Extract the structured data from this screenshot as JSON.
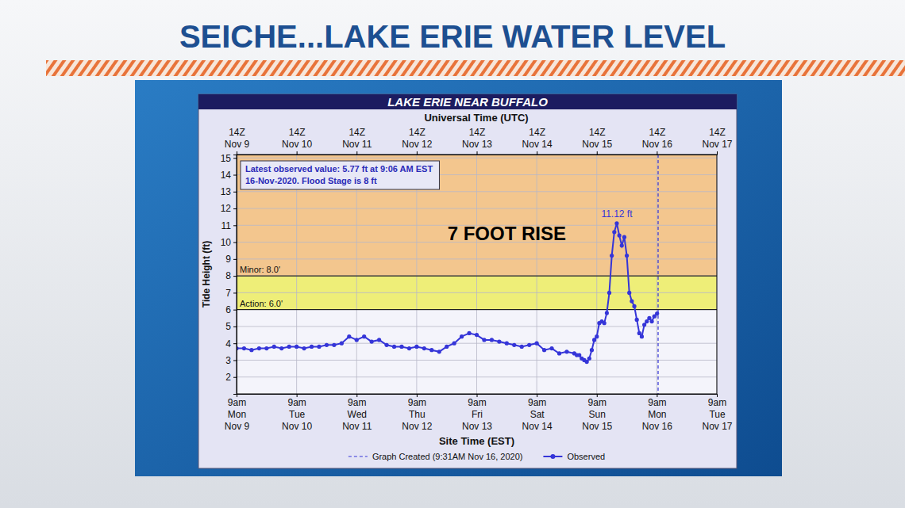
{
  "chart_data": {
    "type": "line",
    "headline": "SEICHE...LAKE ERIE WATER LEVEL",
    "title": "LAKE ERIE NEAR BUFFALO",
    "x2_label": "Universal Time (UTC)",
    "x_label": "Site Time (EST)",
    "y_label": "Tide Height (ft)",
    "xlim": [
      "2020-11-09T09:00",
      "2020-11-17T09:00"
    ],
    "xticks": [
      {
        "value": "2020-11-09T09:00",
        "label": "9am\nMon\nNov 9"
      },
      {
        "value": "2020-11-10T09:00",
        "label": "9am\nTue\nNov 10"
      },
      {
        "value": "2020-11-11T09:00",
        "label": "9am\nWed\nNov 11"
      },
      {
        "value": "2020-11-12T09:00",
        "label": "9am\nThu\nNov 12"
      },
      {
        "value": "2020-11-13T09:00",
        "label": "9am\nFri\nNov 13"
      },
      {
        "value": "2020-11-14T09:00",
        "label": "9am\nSat\nNov 14"
      },
      {
        "value": "2020-11-15T09:00",
        "label": "9am\nSun\nNov 15"
      },
      {
        "value": "2020-11-16T09:00",
        "label": "9am\nMon\nNov 16"
      },
      {
        "value": "2020-11-17T09:00",
        "label": "9am\nTue\nNov 17"
      }
    ],
    "x2ticks": [
      {
        "value": "2020-11-09T09:00",
        "label": "14Z\nNov 9"
      },
      {
        "value": "2020-11-10T09:00",
        "label": "14Z\nNov 10"
      },
      {
        "value": "2020-11-11T09:00",
        "label": "14Z\nNov 11"
      },
      {
        "value": "2020-11-12T09:00",
        "label": "14Z\nNov 12"
      },
      {
        "value": "2020-11-13T09:00",
        "label": "14Z\nNov 13"
      },
      {
        "value": "2020-11-14T09:00",
        "label": "14Z\nNov 14"
      },
      {
        "value": "2020-11-15T09:00",
        "label": "14Z\nNov 15"
      },
      {
        "value": "2020-11-16T09:00",
        "label": "14Z\nNov 16"
      },
      {
        "value": "2020-11-17T09:00",
        "label": "14Z\nNov 17"
      }
    ],
    "ylim": [
      1,
      15.2
    ],
    "yticks": [
      2,
      3,
      4,
      5,
      6,
      7,
      8,
      9,
      10,
      11,
      12,
      13,
      14,
      15
    ],
    "grid": true,
    "legend": "bottom",
    "x": [
      "2020-11-09T09:00",
      "2020-11-09T12:00",
      "2020-11-09T15:00",
      "2020-11-09T18:00",
      "2020-11-09T21:00",
      "2020-11-10T00:00",
      "2020-11-10T03:00",
      "2020-11-10T06:00",
      "2020-11-10T09:00",
      "2020-11-10T12:00",
      "2020-11-10T15:00",
      "2020-11-10T18:00",
      "2020-11-10T21:00",
      "2020-11-11T00:00",
      "2020-11-11T03:00",
      "2020-11-11T06:00",
      "2020-11-11T09:00",
      "2020-11-11T12:00",
      "2020-11-11T15:00",
      "2020-11-11T18:00",
      "2020-11-11T21:00",
      "2020-11-12T00:00",
      "2020-11-12T03:00",
      "2020-11-12T06:00",
      "2020-11-12T09:00",
      "2020-11-12T12:00",
      "2020-11-12T15:00",
      "2020-11-12T18:00",
      "2020-11-12T21:00",
      "2020-11-13T00:00",
      "2020-11-13T03:00",
      "2020-11-13T06:00",
      "2020-11-13T09:00",
      "2020-11-13T12:00",
      "2020-11-13T15:00",
      "2020-11-13T18:00",
      "2020-11-13T21:00",
      "2020-11-14T00:00",
      "2020-11-14T03:00",
      "2020-11-14T06:00",
      "2020-11-14T09:00",
      "2020-11-14T12:00",
      "2020-11-14T15:00",
      "2020-11-14T18:00",
      "2020-11-14T21:00",
      "2020-11-15T00:00",
      "2020-11-15T01:00",
      "2020-11-15T02:00",
      "2020-11-15T03:00",
      "2020-11-15T04:00",
      "2020-11-15T05:00",
      "2020-11-15T06:00",
      "2020-11-15T07:00",
      "2020-11-15T08:00",
      "2020-11-15T09:00",
      "2020-11-15T10:00",
      "2020-11-15T11:00",
      "2020-11-15T12:00",
      "2020-11-15T13:00",
      "2020-11-15T14:00",
      "2020-11-15T15:00",
      "2020-11-15T16:00",
      "2020-11-15T17:00",
      "2020-11-15T18:00",
      "2020-11-15T19:00",
      "2020-11-15T20:00",
      "2020-11-15T21:00",
      "2020-11-15T22:00",
      "2020-11-15T23:00",
      "2020-11-16T00:00",
      "2020-11-16T01:00",
      "2020-11-16T02:00",
      "2020-11-16T03:00",
      "2020-11-16T04:00",
      "2020-11-16T05:00",
      "2020-11-16T06:00",
      "2020-11-16T07:00",
      "2020-11-16T08:00",
      "2020-11-16T09:06"
    ],
    "series": [
      {
        "name": "Observed",
        "color": "#3535d8",
        "marker": "circle",
        "line_style": "solid",
        "values": [
          3.7,
          3.7,
          3.6,
          3.7,
          3.7,
          3.8,
          3.7,
          3.8,
          3.8,
          3.7,
          3.8,
          3.8,
          3.9,
          3.9,
          4.0,
          4.4,
          4.2,
          4.4,
          4.1,
          4.2,
          3.9,
          3.8,
          3.8,
          3.7,
          3.8,
          3.7,
          3.6,
          3.5,
          3.8,
          4.0,
          4.4,
          4.6,
          4.5,
          4.2,
          4.2,
          4.1,
          4.0,
          3.9,
          3.8,
          3.9,
          4.0,
          3.6,
          3.7,
          3.4,
          3.5,
          3.4,
          3.3,
          3.3,
          3.1,
          3.0,
          2.9,
          3.1,
          3.6,
          4.2,
          4.4,
          5.2,
          5.3,
          5.2,
          5.8,
          7.0,
          9.2,
          10.6,
          11.12,
          10.4,
          9.8,
          10.3,
          9.2,
          7.0,
          6.5,
          6.2,
          5.4,
          4.6,
          4.4,
          5.1,
          5.3,
          5.5,
          5.3,
          5.6,
          5.77
        ]
      }
    ],
    "thresholds": [
      {
        "value": 8,
        "label": "Minor: 8.0'",
        "color": "#f3c68e"
      },
      {
        "value": 6,
        "label": "Action: 6.0'",
        "color": "#eeee78"
      }
    ],
    "info_box": [
      "Latest observed value: 5.77 ft at 9:06 AM EST",
      "16-Nov-2020. Flood Stage is 8 ft"
    ],
    "annotations": [
      {
        "text": "7 FOOT RISE",
        "x": "2020-11-13T21:00",
        "y": 10.5,
        "color": "#000000"
      },
      {
        "text": "11.12 ft",
        "x": "2020-11-15T17:00",
        "y": 11.12,
        "color": "#3535d8"
      }
    ],
    "graph_created": {
      "x": "2020-11-16T09:31",
      "label": "Graph Created (9:31AM Nov 16, 2020)",
      "color": "#3535d8",
      "line_style": "dashed"
    }
  }
}
